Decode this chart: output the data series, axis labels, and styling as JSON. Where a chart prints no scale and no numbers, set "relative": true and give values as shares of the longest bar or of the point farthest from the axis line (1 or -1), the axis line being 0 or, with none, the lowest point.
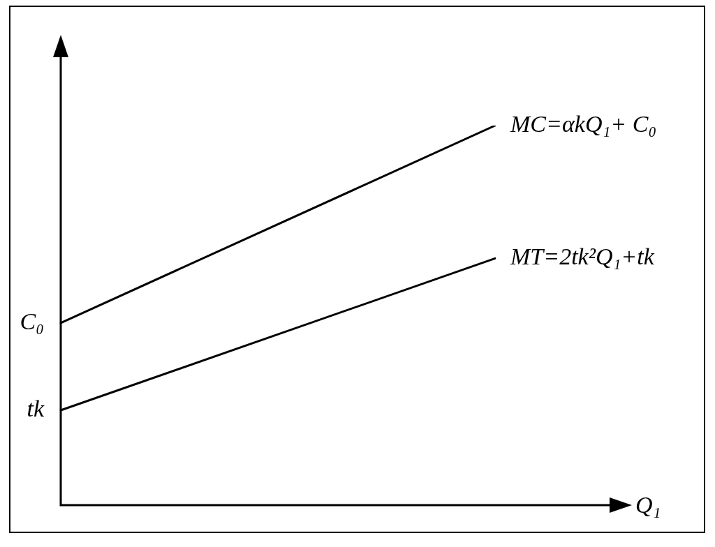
{
  "chart_data": {
    "type": "line",
    "relative": true,
    "xlabel": "Q₁",
    "categories": [
      null,
      null
    ],
    "series": [
      {
        "name": "MC=αkQ₁+ C₀",
        "color": "#000000",
        "values": [
          0.48,
          1
        ]
      },
      {
        "name": "MT=2tk²Q₁+tk",
        "color": "#000000",
        "values": [
          0.25,
          0.65
        ]
      }
    ],
    "annotations": [
      "C₀",
      "tk"
    ]
  }
}
